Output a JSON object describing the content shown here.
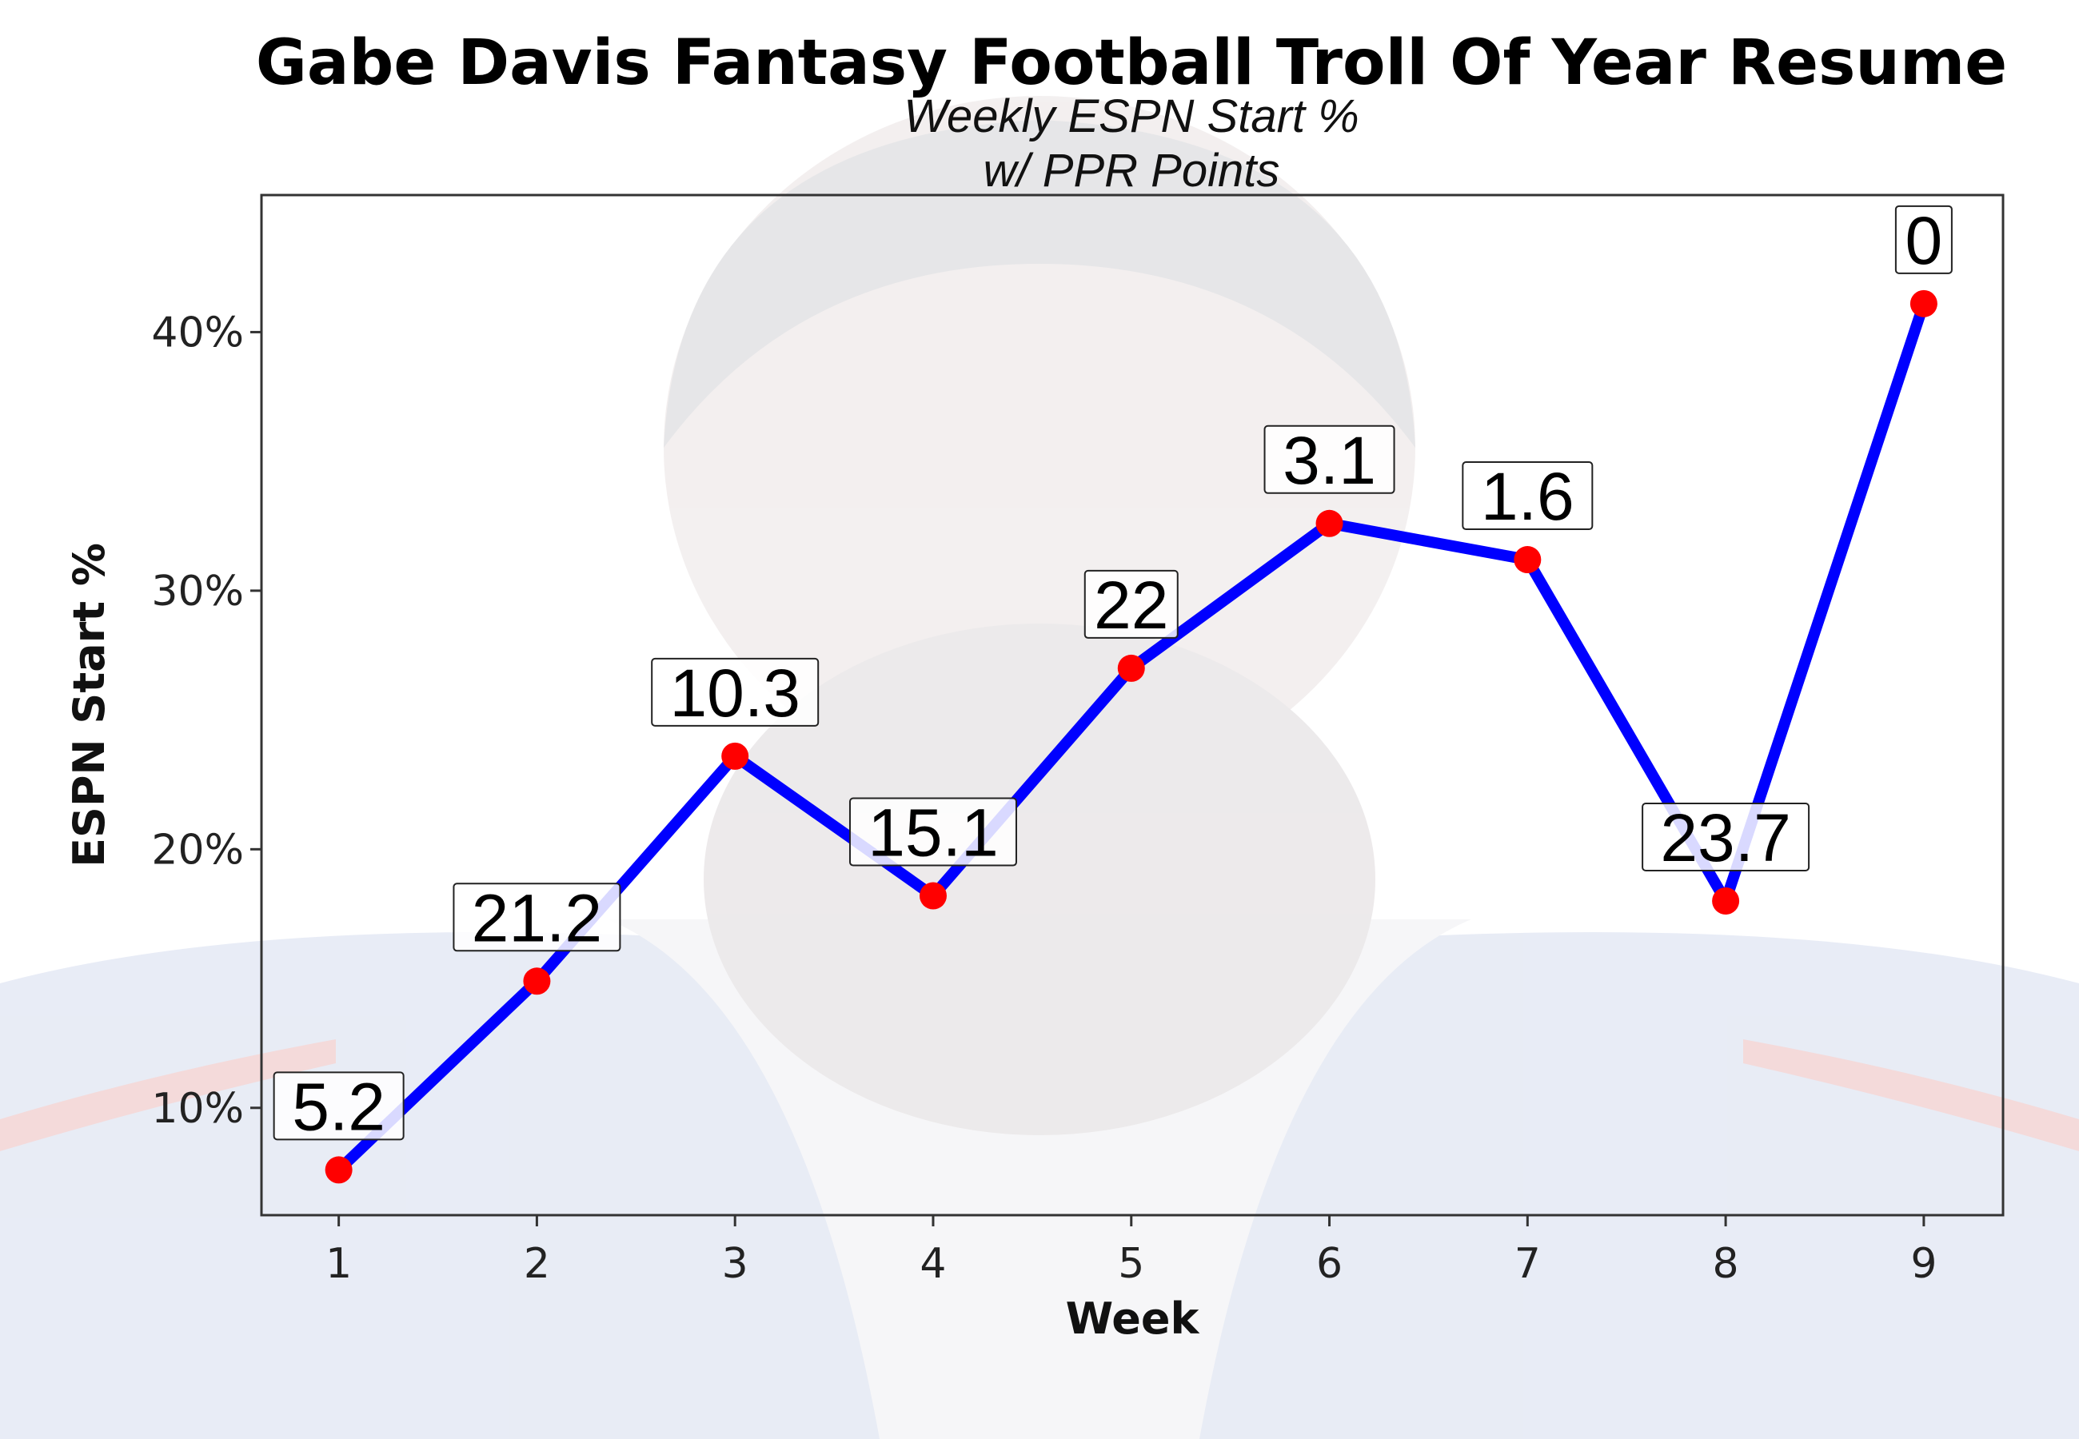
{
  "chart_data": {
    "type": "line",
    "title": "Gabe Davis Fantasy Football Troll Of Year Resume",
    "subtitle_line1": "Weekly ESPN Start %",
    "subtitle_line2": "w/ PPR Points",
    "xlabel": "Week",
    "ylabel": "ESPN Start %",
    "x": [
      1,
      2,
      3,
      4,
      5,
      6,
      7,
      8,
      9
    ],
    "x_tick_labels": [
      "1",
      "2",
      "3",
      "4",
      "5",
      "6",
      "7",
      "8",
      "9"
    ],
    "y_ticks": [
      10,
      20,
      30,
      40
    ],
    "y_tick_labels": [
      "10%",
      "20%",
      "30%",
      "40%"
    ],
    "xlim": [
      0.61,
      9.4
    ],
    "ylim": [
      5.85,
      45.3
    ],
    "series": [
      {
        "name": "ESPN Start %",
        "values": [
          7.6,
          14.9,
          23.6,
          18.2,
          27.0,
          32.6,
          31.2,
          18.0,
          41.1
        ],
        "point_labels": [
          "5.2",
          "21.2",
          "10.3",
          "15.1",
          "22",
          "3.1",
          "1.6",
          "23.7",
          "0"
        ],
        "line_color": "#0000ff",
        "point_color": "#ff0000"
      }
    ],
    "grid": false,
    "legend": "none"
  }
}
